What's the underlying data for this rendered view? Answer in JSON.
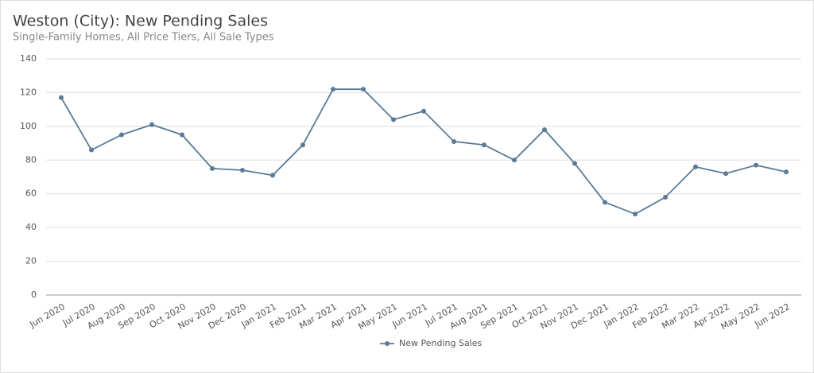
{
  "chart_data": {
    "type": "line",
    "title": "Weston (City): New Pending Sales",
    "subtitle": "Single-Family Homes, All Price Tiers, All Sale Types",
    "categories": [
      "Jun 2020",
      "Jul 2020",
      "Aug 2020",
      "Sep 2020",
      "Oct 2020",
      "Nov 2020",
      "Dec 2020",
      "Jan 2021",
      "Feb 2021",
      "Mar 2021",
      "Apr 2021",
      "May 2021",
      "Jun 2021",
      "Jul 2021",
      "Aug 2021",
      "Sep 2021",
      "Oct 2021",
      "Nov 2021",
      "Dec 2021",
      "Jan 2022",
      "Feb 2022",
      "Mar 2022",
      "Apr 2022",
      "May 2022",
      "Jun 2022"
    ],
    "series": [
      {
        "name": "New Pending Sales",
        "color": "#5a7a98",
        "values": [
          117,
          86,
          95,
          101,
          95,
          75,
          74,
          71,
          89,
          122,
          122,
          104,
          109,
          91,
          89,
          80,
          98,
          78,
          55,
          48,
          58,
          76,
          72,
          77,
          73
        ]
      }
    ],
    "ylim": [
      0,
      140
    ],
    "yticks": [
      0,
      20,
      40,
      60,
      80,
      100,
      120,
      140
    ],
    "grid": true,
    "legend": "bottom"
  }
}
